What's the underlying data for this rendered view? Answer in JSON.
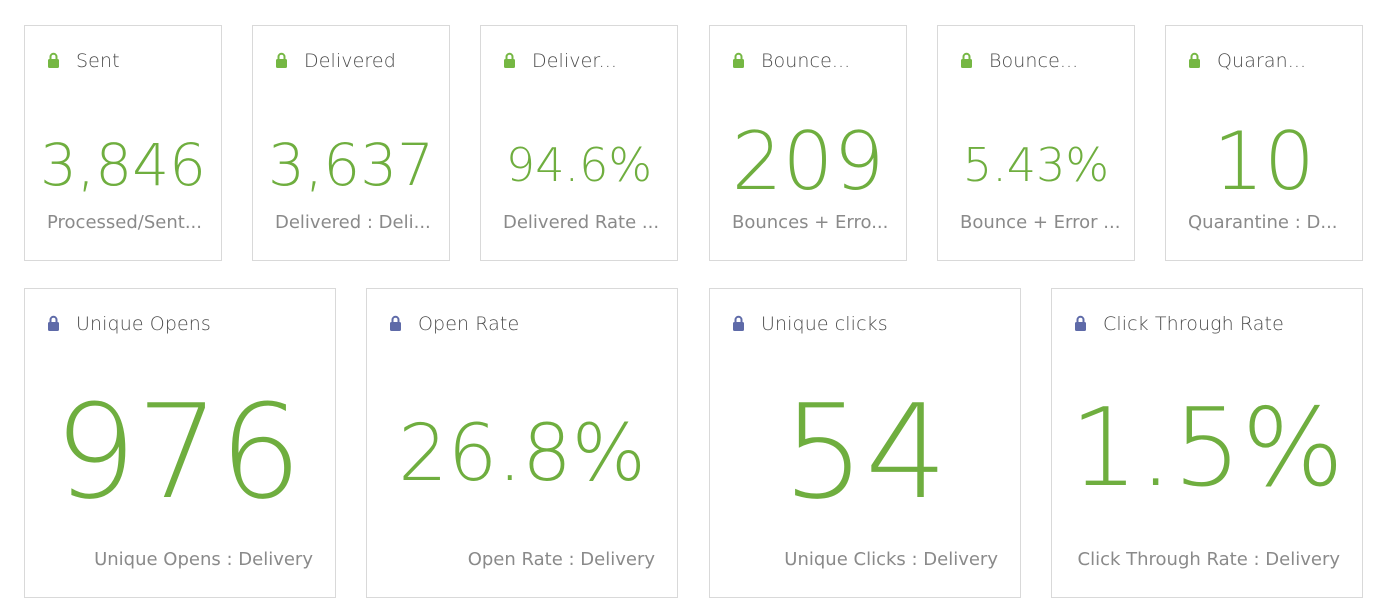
{
  "colors": {
    "metric": "#6fae3f",
    "lock_green": "#75b743",
    "lock_blue": "#5e6aa8",
    "border": "#d9d9d9",
    "title": "#4b4b4b",
    "subtitle": "#8a8a8a"
  },
  "top_cards": [
    {
      "title": "Sent",
      "value": "3,846",
      "subtitle": "Processed/Sent...",
      "icon": "lock-icon"
    },
    {
      "title": "Delivered",
      "value": "3,637",
      "subtitle": "Delivered : Deli...",
      "icon": "lock-icon"
    },
    {
      "title": "Deliver...",
      "value": "94.6%",
      "subtitle": "Delivered Rate ...",
      "icon": "lock-icon"
    },
    {
      "title": "Bounce...",
      "value": "209",
      "subtitle": "Bounces + Erro...",
      "icon": "lock-icon"
    },
    {
      "title": "Bounce...",
      "value": "5.43%",
      "subtitle": "Bounce + Error ...",
      "icon": "lock-icon"
    },
    {
      "title": "Quaran...",
      "value": "10",
      "subtitle": "Quarantine : D...",
      "icon": "lock-icon"
    }
  ],
  "bottom_cards": [
    {
      "title": "Unique Opens",
      "value": "976",
      "subtitle": "Unique Opens : Delivery",
      "icon": "lock-icon"
    },
    {
      "title": "Open Rate",
      "value": "26.8%",
      "subtitle": "Open Rate : Delivery",
      "icon": "lock-icon"
    },
    {
      "title": "Unique clicks",
      "value": "54",
      "subtitle": "Unique Clicks : Delivery",
      "icon": "lock-icon"
    },
    {
      "title": "Click Through Rate",
      "value": "1.5%",
      "subtitle": "Click Through Rate : Delivery",
      "icon": "lock-icon"
    }
  ]
}
